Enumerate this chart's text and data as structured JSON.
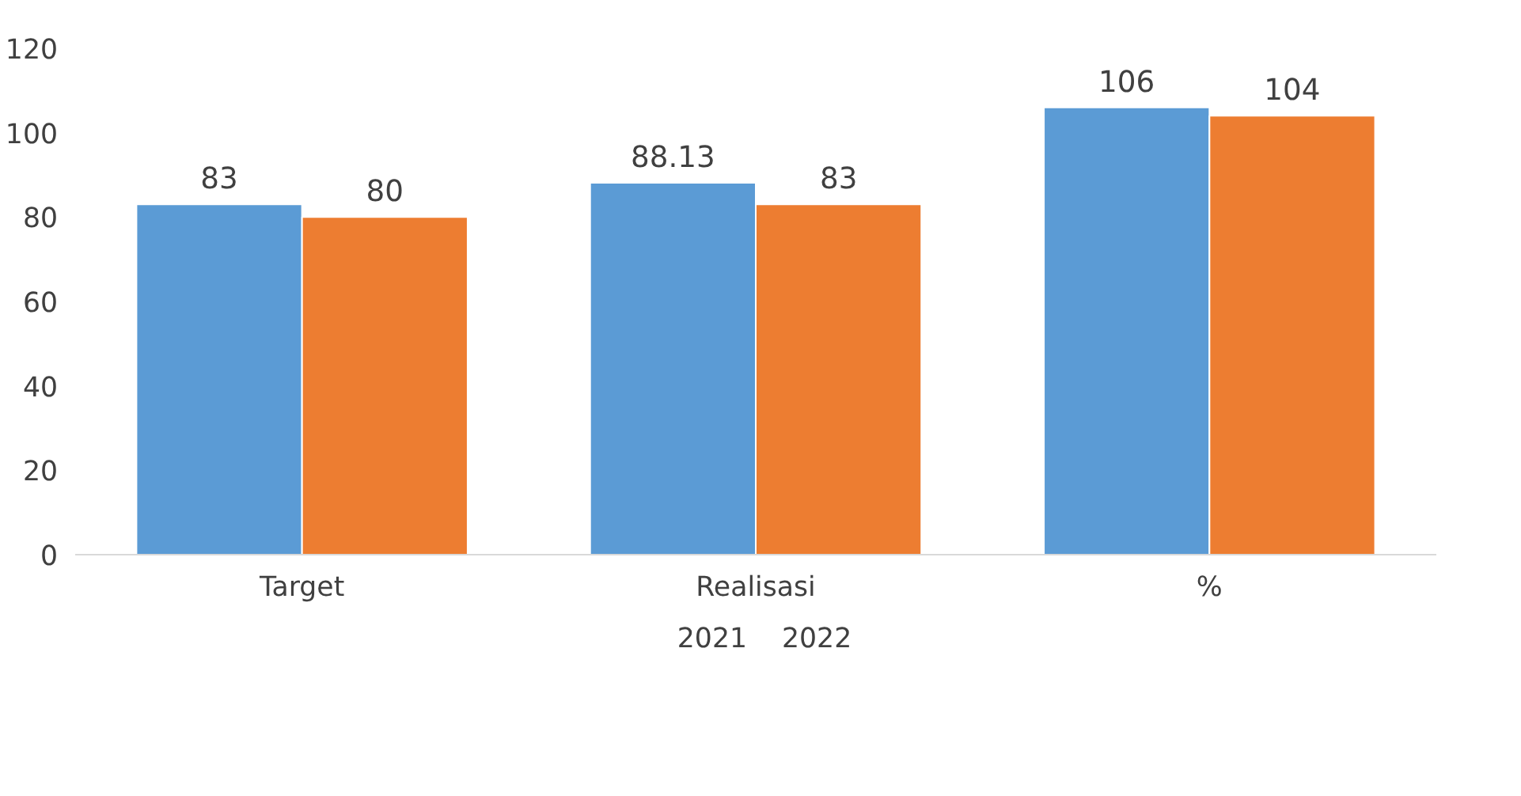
{
  "chart_data": {
    "type": "bar",
    "categories": [
      "Target",
      "Realisasi",
      "%"
    ],
    "series": [
      {
        "name": "2021",
        "color": "#5b9bd5",
        "values": [
          83,
          88.13,
          106
        ]
      },
      {
        "name": "2022",
        "color": "#ed7d31",
        "values": [
          80,
          83,
          104
        ]
      }
    ],
    "ylim": [
      0,
      120
    ],
    "yticks": [
      0,
      20,
      40,
      60,
      80,
      100,
      120
    ],
    "grid": false,
    "legend": "bottom",
    "data_labels": true
  }
}
